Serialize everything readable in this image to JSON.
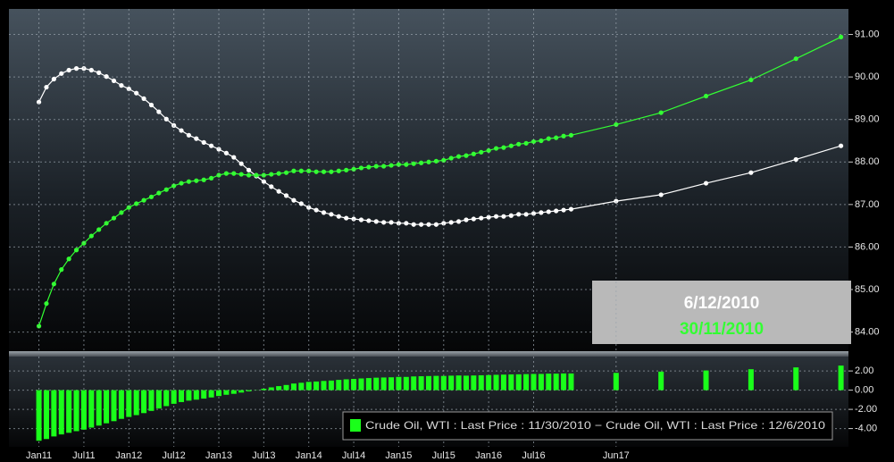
{
  "chart_data": [
    {
      "type": "line",
      "x": [
        "2011-01",
        "2011-02",
        "2011-03",
        "2011-04",
        "2011-05",
        "2011-06",
        "2011-07",
        "2011-08",
        "2011-09",
        "2011-10",
        "2011-11",
        "2011-12",
        "2012-01",
        "2012-02",
        "2012-03",
        "2012-04",
        "2012-05",
        "2012-06",
        "2012-07",
        "2012-08",
        "2012-09",
        "2012-10",
        "2012-11",
        "2012-12",
        "2013-01",
        "2013-02",
        "2013-03",
        "2013-04",
        "2013-05",
        "2013-06",
        "2013-07",
        "2013-08",
        "2013-09",
        "2013-10",
        "2013-11",
        "2013-12",
        "2014-01",
        "2014-02",
        "2014-03",
        "2014-04",
        "2014-05",
        "2014-06",
        "2014-07",
        "2014-08",
        "2014-09",
        "2014-10",
        "2014-11",
        "2014-12",
        "2015-01",
        "2015-02",
        "2015-03",
        "2015-04",
        "2015-05",
        "2015-06",
        "2015-07",
        "2015-08",
        "2015-09",
        "2015-10",
        "2015-11",
        "2015-12",
        "2016-01",
        "2016-02",
        "2016-03",
        "2016-04",
        "2016-05",
        "2016-06",
        "2016-07",
        "2016-08",
        "2016-09",
        "2016-10",
        "2016-11",
        "2016-12",
        "2017-06",
        "2017-12",
        "2018-06",
        "2018-12",
        "2019-06",
        "2019-12"
      ],
      "series": [
        {
          "name": "6/12/2010",
          "color": "#ffffff",
          "values": [
            89.41,
            89.76,
            89.95,
            90.08,
            90.16,
            90.2,
            90.2,
            90.16,
            90.1,
            90.01,
            89.91,
            89.8,
            89.72,
            89.62,
            89.49,
            89.34,
            89.18,
            89.01,
            88.86,
            88.74,
            88.63,
            88.55,
            88.46,
            88.38,
            88.3,
            88.21,
            88.11,
            87.96,
            87.81,
            87.67,
            87.54,
            87.42,
            87.31,
            87.21,
            87.1,
            87.02,
            86.93,
            86.87,
            86.81,
            86.77,
            86.72,
            86.68,
            86.66,
            86.64,
            86.62,
            86.6,
            86.58,
            86.58,
            86.56,
            86.56,
            86.53,
            86.53,
            86.53,
            86.53,
            86.56,
            86.58,
            86.6,
            86.64,
            86.66,
            86.68,
            86.7,
            86.72,
            86.72,
            86.74,
            86.77,
            86.77,
            86.79,
            86.81,
            86.83,
            86.85,
            86.87,
            86.89,
            87.08,
            87.23,
            87.5,
            87.75,
            88.06,
            88.38
          ]
        },
        {
          "name": "30/11/2010",
          "color": "#33ff33",
          "values": [
            84.14,
            84.67,
            85.13,
            85.47,
            85.72,
            85.93,
            86.09,
            86.26,
            86.41,
            86.56,
            86.68,
            86.81,
            86.93,
            87.02,
            87.1,
            87.18,
            87.27,
            87.35,
            87.44,
            87.5,
            87.54,
            87.56,
            87.58,
            87.62,
            87.69,
            87.73,
            87.73,
            87.71,
            87.69,
            87.69,
            87.69,
            87.71,
            87.73,
            87.75,
            87.79,
            87.79,
            87.79,
            87.77,
            87.77,
            87.77,
            87.79,
            87.81,
            87.83,
            87.86,
            87.88,
            87.9,
            87.9,
            87.92,
            87.94,
            87.94,
            87.96,
            87.98,
            88.0,
            88.02,
            88.04,
            88.09,
            88.13,
            88.15,
            88.19,
            88.23,
            88.27,
            88.32,
            88.34,
            88.38,
            88.42,
            88.44,
            88.48,
            88.5,
            88.55,
            88.57,
            88.61,
            88.63,
            88.88,
            89.16,
            89.55,
            89.93,
            90.43,
            90.94
          ]
        }
      ],
      "xlim": [
        "2010-09",
        "2020-01"
      ],
      "ylim": [
        83.55,
        91.6
      ],
      "yticks": [
        {
          "value": 91,
          "label": "91.00"
        },
        {
          "value": 90,
          "label": "90.00"
        },
        {
          "value": 89,
          "label": "89.00"
        },
        {
          "value": 88,
          "label": "88.00"
        },
        {
          "value": 87,
          "label": "87.00"
        },
        {
          "value": 86,
          "label": "86.00"
        },
        {
          "value": 85,
          "label": "85.00"
        },
        {
          "value": 84,
          "label": "84.00"
        }
      ],
      "grid": true
    },
    {
      "type": "bar",
      "x": [
        "2011-01",
        "2011-02",
        "2011-03",
        "2011-04",
        "2011-05",
        "2011-06",
        "2011-07",
        "2011-08",
        "2011-09",
        "2011-10",
        "2011-11",
        "2011-12",
        "2012-01",
        "2012-02",
        "2012-03",
        "2012-04",
        "2012-05",
        "2012-06",
        "2012-07",
        "2012-08",
        "2012-09",
        "2012-10",
        "2012-11",
        "2012-12",
        "2013-01",
        "2013-02",
        "2013-03",
        "2013-04",
        "2013-05",
        "2013-06",
        "2013-07",
        "2013-08",
        "2013-09",
        "2013-10",
        "2013-11",
        "2013-12",
        "2014-01",
        "2014-02",
        "2014-03",
        "2014-04",
        "2014-05",
        "2014-06",
        "2014-07",
        "2014-08",
        "2014-09",
        "2014-10",
        "2014-11",
        "2014-12",
        "2015-01",
        "2015-02",
        "2015-03",
        "2015-04",
        "2015-05",
        "2015-06",
        "2015-07",
        "2015-08",
        "2015-09",
        "2015-10",
        "2015-11",
        "2015-12",
        "2016-01",
        "2016-02",
        "2016-03",
        "2016-04",
        "2016-05",
        "2016-06",
        "2016-07",
        "2016-08",
        "2016-09",
        "2016-10",
        "2016-11",
        "2016-12",
        "2017-06",
        "2017-12",
        "2018-06",
        "2018-12",
        "2019-06",
        "2019-12"
      ],
      "series": [
        {
          "name": "Crude Oil, WTI : Last Price : 11/30/2010 − Crude Oil, WTI : Last Price : 12/6/2010",
          "color": "#1aff1a",
          "values": [
            -5.27,
            -5.09,
            -4.82,
            -4.61,
            -4.44,
            -4.27,
            -4.11,
            -3.9,
            -3.69,
            -3.45,
            -3.23,
            -2.99,
            -2.79,
            -2.6,
            -2.39,
            -2.16,
            -1.91,
            -1.66,
            -1.42,
            -1.24,
            -1.09,
            -0.99,
            -0.88,
            -0.76,
            -0.61,
            -0.48,
            -0.38,
            -0.25,
            -0.12,
            0.02,
            0.15,
            0.29,
            0.42,
            0.54,
            0.69,
            0.77,
            0.86,
            0.9,
            0.96,
            1.0,
            1.07,
            1.13,
            1.17,
            1.22,
            1.26,
            1.3,
            1.32,
            1.34,
            1.38,
            1.38,
            1.43,
            1.45,
            1.47,
            1.49,
            1.48,
            1.51,
            1.53,
            1.51,
            1.53,
            1.55,
            1.57,
            1.6,
            1.62,
            1.64,
            1.65,
            1.67,
            1.69,
            1.69,
            1.72,
            1.72,
            1.74,
            1.74,
            1.8,
            1.93,
            2.05,
            2.18,
            2.37,
            2.56
          ]
        }
      ],
      "xlim": [
        "2010-09",
        "2020-01"
      ],
      "xticks": [
        {
          "value": "2011-01",
          "label": "Jan11"
        },
        {
          "value": "2011-07",
          "label": "Jul11"
        },
        {
          "value": "2012-01",
          "label": "Jan12"
        },
        {
          "value": "2012-07",
          "label": "Jul12"
        },
        {
          "value": "2013-01",
          "label": "Jan13"
        },
        {
          "value": "2013-07",
          "label": "Jul13"
        },
        {
          "value": "2014-01",
          "label": "Jan14"
        },
        {
          "value": "2014-07",
          "label": "Jul14"
        },
        {
          "value": "2015-01",
          "label": "Jan15"
        },
        {
          "value": "2015-07",
          "label": "Jul15"
        },
        {
          "value": "2016-01",
          "label": "Jan16"
        },
        {
          "value": "2016-07",
          "label": "Jul16"
        },
        {
          "value": "2017-06",
          "label": "Jun17"
        }
      ],
      "ylim": [
        -5.9,
        3.5
      ],
      "yticks": [
        {
          "value": 2,
          "label": "2.00"
        },
        {
          "value": 0,
          "label": "0.00"
        },
        {
          "value": -2,
          "label": "-2.00"
        },
        {
          "value": -4,
          "label": "-4.00"
        }
      ],
      "grid": true
    }
  ]
}
